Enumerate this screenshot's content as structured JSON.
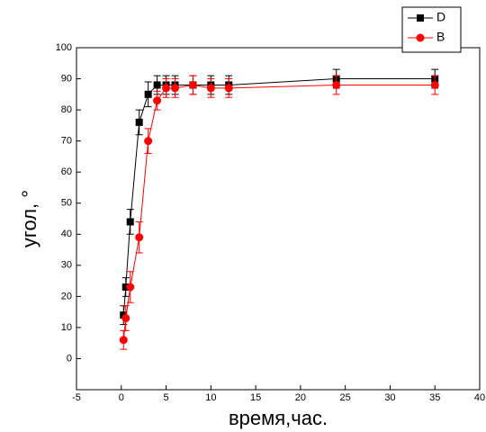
{
  "chart_data": {
    "type": "line",
    "x_label": "время,час.",
    "y_label": "угол, °",
    "xlim": [
      -5,
      40
    ],
    "xticks": [
      -5,
      0,
      5,
      10,
      15,
      20,
      25,
      30,
      35,
      40
    ],
    "ylim": [
      -10,
      100
    ],
    "yticks": [
      0,
      10,
      20,
      30,
      40,
      50,
      60,
      70,
      80,
      90,
      100
    ],
    "legend": "upper right",
    "series": [
      {
        "name": "D",
        "color": "#000000",
        "marker": "square",
        "x": [
          0.25,
          0.5,
          1,
          2,
          3,
          4,
          5,
          6,
          8,
          10,
          12,
          24,
          35
        ],
        "values": [
          14,
          23,
          44,
          76,
          85,
          88,
          88,
          88,
          88,
          88,
          88,
          90,
          90
        ],
        "errors": [
          3,
          3,
          4,
          4,
          4,
          3,
          3,
          3,
          3,
          3,
          3,
          3,
          3
        ]
      },
      {
        "name": "B",
        "color": "#ff0000",
        "marker": "circle",
        "x": [
          0.25,
          0.5,
          1,
          2,
          3,
          4,
          5,
          6,
          8,
          10,
          12,
          24,
          35
        ],
        "values": [
          6,
          13,
          23,
          39,
          70,
          83,
          87,
          87,
          88,
          87,
          87,
          88,
          88
        ],
        "errors": [
          3,
          4,
          5,
          5,
          4,
          3,
          3,
          3,
          3,
          3,
          3,
          3,
          3
        ]
      }
    ]
  }
}
